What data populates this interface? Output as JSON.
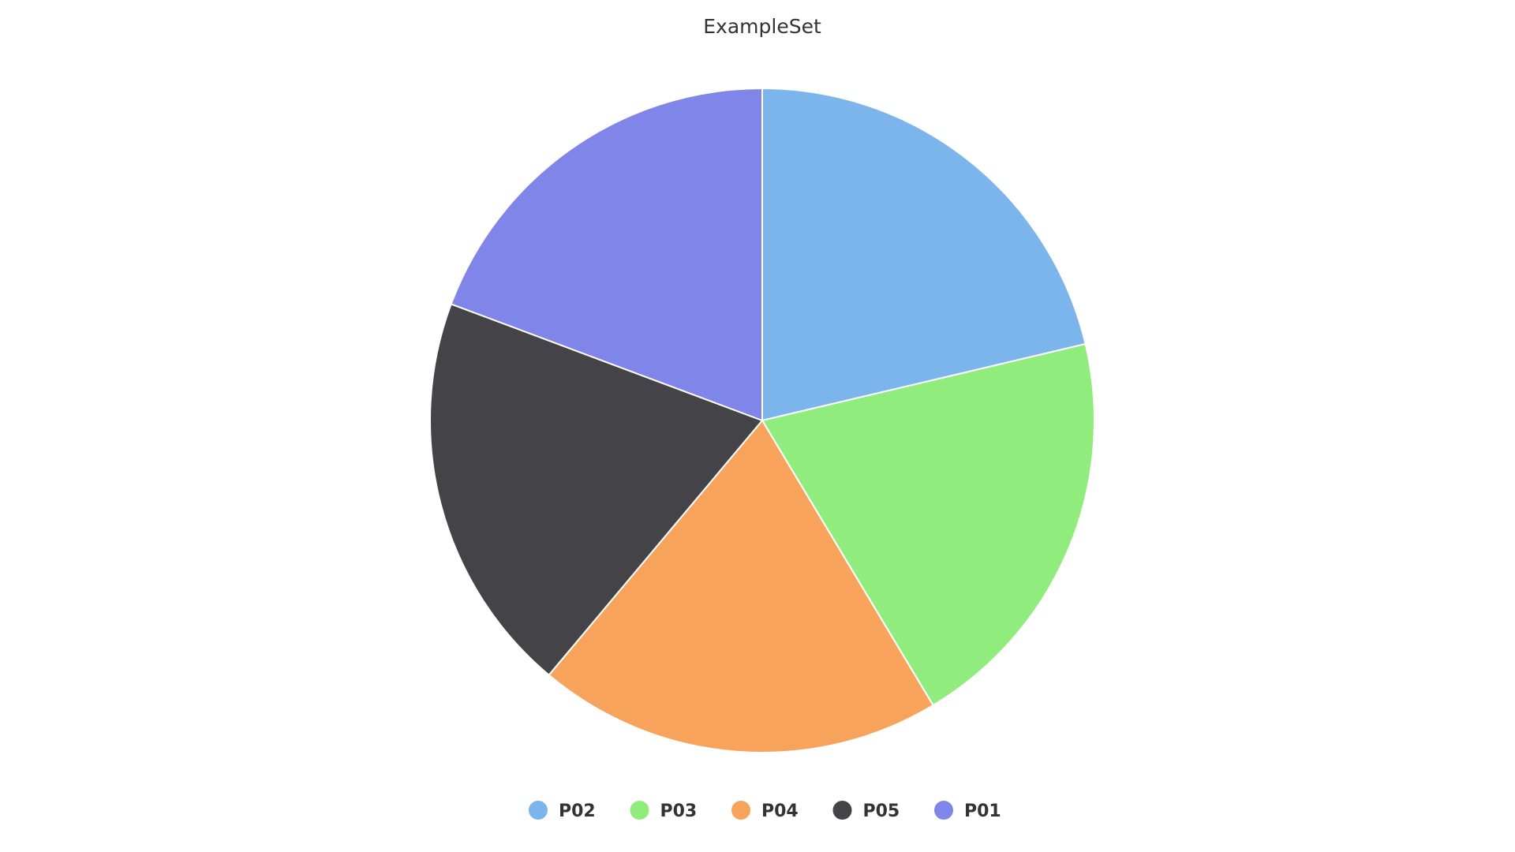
{
  "chart_data": {
    "type": "pie",
    "title": "ExampleSet",
    "legend_position": "bottom",
    "start_angle": 0,
    "direction": "clockwise",
    "slices": [
      {
        "name": "P02",
        "value": 21.3,
        "color": "#7cb5ec"
      },
      {
        "name": "P03",
        "value": 20.1,
        "color": "#90ed7d"
      },
      {
        "name": "P04",
        "value": 19.7,
        "color": "#f7a35c"
      },
      {
        "name": "P05",
        "value": 19.6,
        "color": "#434348"
      },
      {
        "name": "P01",
        "value": 19.3,
        "color": "#8085e9"
      }
    ]
  }
}
